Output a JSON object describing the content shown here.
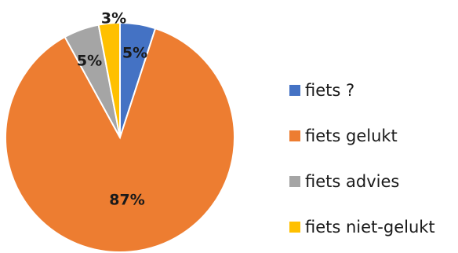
{
  "chart_data": {
    "type": "pie",
    "title": "",
    "start_angle_deg": 0,
    "direction": "clockwise",
    "legend_position": "right",
    "slices": [
      {
        "name": "fiets ?",
        "value": 5,
        "label": "5%",
        "color": "#4472C4"
      },
      {
        "name": "fiets gelukt",
        "value": 87,
        "label": "87%",
        "color": "#ED7D31"
      },
      {
        "name": "fiets advies",
        "value": 5,
        "label": "5%",
        "color": "#A5A5A5"
      },
      {
        "name": "fiets niet-gelukt",
        "value": 3,
        "label": "3%",
        "color": "#FFC000"
      }
    ]
  }
}
